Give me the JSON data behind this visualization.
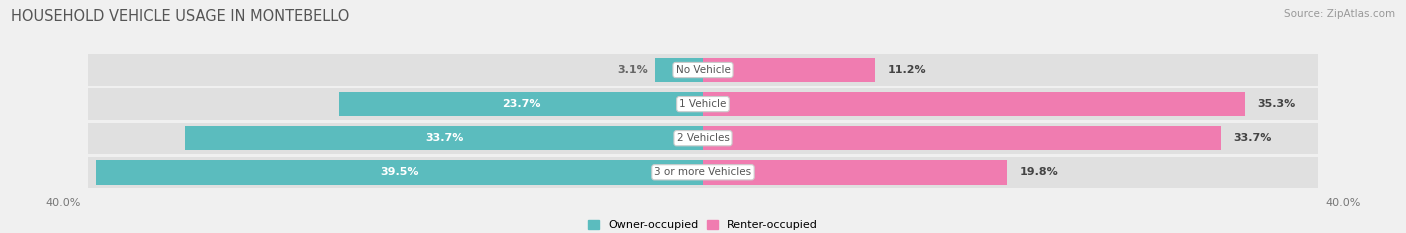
{
  "title": "HOUSEHOLD VEHICLE USAGE IN MONTEBELLO",
  "source": "Source: ZipAtlas.com",
  "categories": [
    "No Vehicle",
    "1 Vehicle",
    "2 Vehicles",
    "3 or more Vehicles"
  ],
  "owner_values": [
    3.1,
    23.7,
    33.7,
    39.5
  ],
  "renter_values": [
    11.2,
    35.3,
    33.7,
    19.8
  ],
  "owner_color": "#5bbcbe",
  "renter_color": "#f07cb0",
  "background_color": "#f0f0f0",
  "bar_background_color": "#e0e0e0",
  "xlim": 40.0,
  "legend_owner": "Owner-occupied",
  "legend_renter": "Renter-occupied",
  "axis_label_left": "40.0%",
  "axis_label_right": "40.0%",
  "title_fontsize": 10.5,
  "source_fontsize": 7.5,
  "bar_height": 0.72,
  "bar_spacing": 1.0
}
